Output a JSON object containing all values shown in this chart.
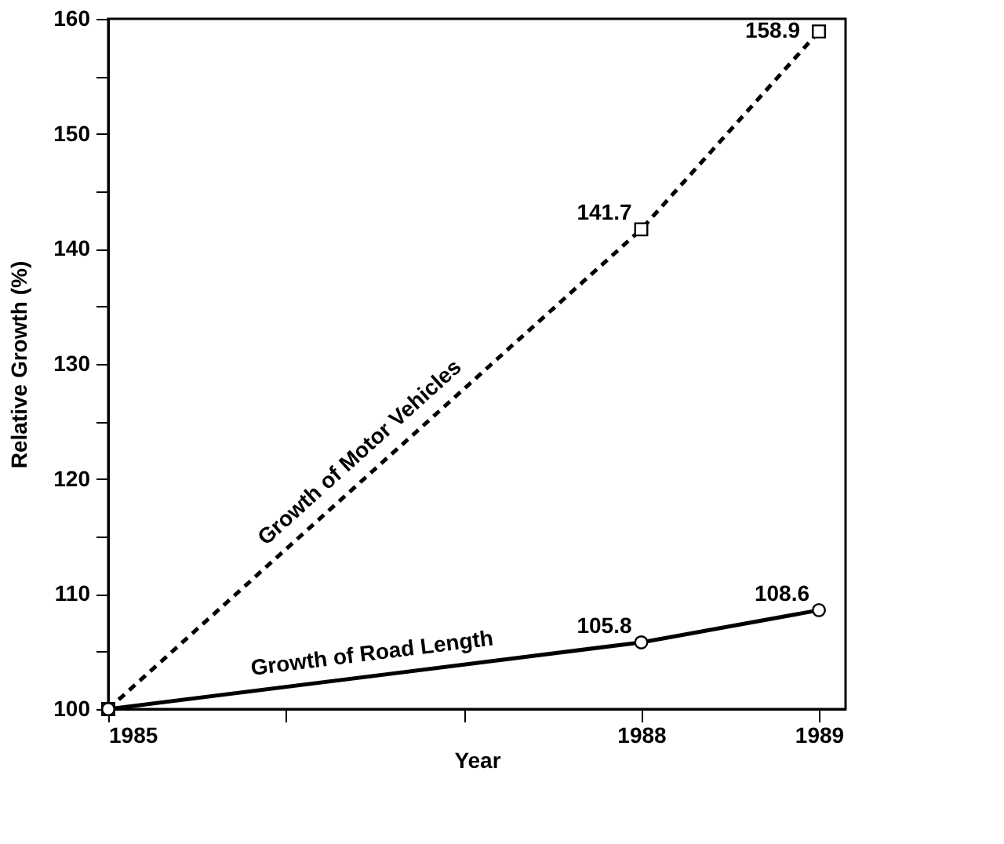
{
  "chart_data": {
    "type": "line",
    "xlabel": "Year",
    "ylabel": "Relative Growth (%)",
    "xlim": [
      1985,
      1989.15
    ],
    "xticks": [
      1985,
      {
        "value": 1986,
        "label": null
      },
      {
        "value": 1987,
        "label": null
      },
      1988,
      1989
    ],
    "ylim": [
      100,
      160
    ],
    "yticks": [
      100,
      {
        "value": 105,
        "label": null
      },
      110,
      {
        "value": 115,
        "label": null
      },
      120,
      {
        "value": 125,
        "label": null
      },
      130,
      {
        "value": 135,
        "label": null
      },
      140,
      {
        "value": 145,
        "label": null
      },
      150,
      {
        "value": 155,
        "label": null
      },
      160
    ],
    "grid": false,
    "legend": false,
    "series": [
      {
        "name": "Growth of Motor Vehicles",
        "color": "#000000",
        "x": [
          1985,
          1988,
          1989
        ],
        "values": [
          100,
          141.7,
          158.9
        ],
        "value_labels": [
          null,
          "141.7",
          "158.9"
        ],
        "marker": "square",
        "line_style": "dashed"
      },
      {
        "name": "Growth of Road Length",
        "color": "#000000",
        "x": [
          1985,
          1988,
          1989
        ],
        "values": [
          100,
          105.8,
          108.6
        ],
        "value_labels": [
          null,
          "105.8",
          "108.6"
        ],
        "marker": "circle",
        "line_style": "solid"
      }
    ]
  }
}
